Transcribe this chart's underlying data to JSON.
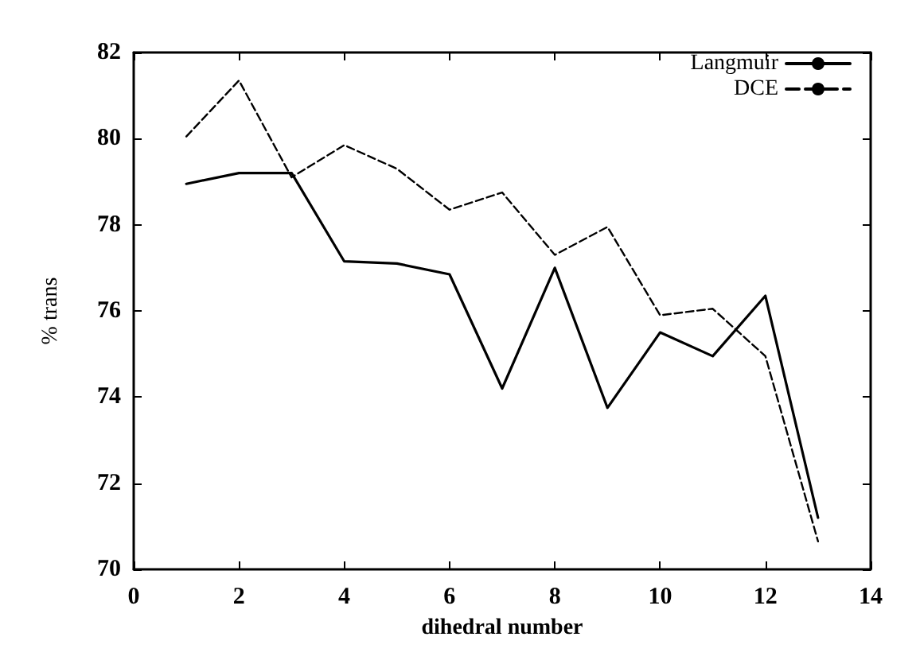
{
  "chart_data": {
    "type": "line",
    "xlabel": "dihedral number",
    "ylabel": "% trans",
    "x": [
      1,
      2,
      3,
      4,
      5,
      6,
      7,
      8,
      9,
      10,
      11,
      12,
      13
    ],
    "series": [
      {
        "name": "Langmuir",
        "color": "#000000",
        "line_style": "solid",
        "values": [
          78.95,
          79.2,
          79.2,
          77.15,
          77.1,
          76.85,
          74.2,
          77.0,
          73.75,
          75.5,
          74.95,
          76.35,
          71.2
        ]
      },
      {
        "name": "DCE",
        "color": "#000000",
        "line_style": "dashed",
        "values": [
          80.05,
          81.35,
          79.1,
          79.85,
          79.3,
          78.35,
          78.75,
          77.3,
          77.95,
          75.9,
          76.05,
          74.95,
          70.65
        ]
      }
    ],
    "xlim": [
      0,
      14
    ],
    "xticks": [
      0,
      2,
      4,
      6,
      8,
      10,
      12,
      14
    ],
    "ylim": [
      70,
      82
    ],
    "yticks": [
      70,
      72,
      74,
      76,
      78,
      80,
      82
    ],
    "grid": false,
    "legend": "top right",
    "marker": "none"
  }
}
